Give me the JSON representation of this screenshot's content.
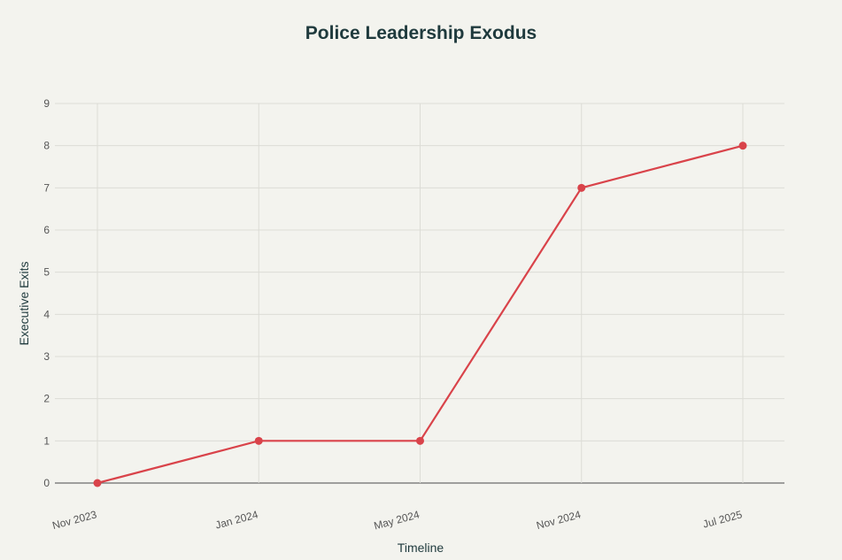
{
  "chart_data": {
    "type": "line",
    "title": "Police Leadership Exodus",
    "xlabel": "Timeline",
    "ylabel": "Executive Exits",
    "categories": [
      "Nov 2023",
      "Jan 2024",
      "May 2024",
      "Nov 2024",
      "Jul 2025"
    ],
    "series": [
      {
        "values": [
          0,
          1,
          1,
          7,
          8
        ],
        "color": "#d9434a"
      }
    ],
    "ylim": [
      0,
      9
    ],
    "yticks": [
      "0",
      "1",
      "2",
      "3",
      "4",
      "5",
      "6",
      "7",
      "8",
      "9"
    ],
    "grid": true,
    "background": "#f3f3ee",
    "colors": {
      "title": "#1f3a3d",
      "grid": "#dcdcd6",
      "zero_line": "#6b6b6b",
      "tick_text": "#555555"
    }
  }
}
